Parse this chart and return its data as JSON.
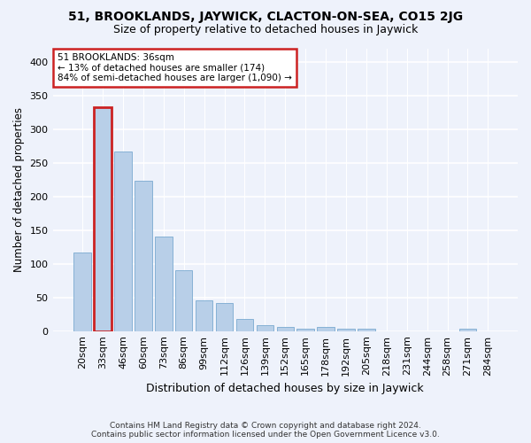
{
  "title1": "51, BROOKLANDS, JAYWICK, CLACTON-ON-SEA, CO15 2JG",
  "title2": "Size of property relative to detached houses in Jaywick",
  "xlabel": "Distribution of detached houses by size in Jaywick",
  "ylabel": "Number of detached properties",
  "categories": [
    "20sqm",
    "33sqm",
    "46sqm",
    "60sqm",
    "73sqm",
    "86sqm",
    "99sqm",
    "112sqm",
    "126sqm",
    "139sqm",
    "152sqm",
    "165sqm",
    "178sqm",
    "192sqm",
    "205sqm",
    "218sqm",
    "231sqm",
    "244sqm",
    "258sqm",
    "271sqm",
    "284sqm"
  ],
  "values": [
    117,
    333,
    267,
    224,
    141,
    90,
    46,
    42,
    18,
    9,
    6,
    4,
    6,
    4,
    4,
    0,
    0,
    0,
    0,
    4,
    0
  ],
  "bar_color": "#b8cfe8",
  "bar_edge_color": "#7aaad0",
  "highlight_bar_index": 1,
  "highlight_bar_color": "#b8cfe8",
  "highlight_edge_color": "#cc2222",
  "annotation_text": "51 BROOKLANDS: 36sqm\n← 13% of detached houses are smaller (174)\n84% of semi-detached houses are larger (1,090) →",
  "annotation_box_color": "#ffffff",
  "annotation_box_edge_color": "#cc2222",
  "footnote1": "Contains HM Land Registry data © Crown copyright and database right 2024.",
  "footnote2": "Contains public sector information licensed under the Open Government Licence v3.0.",
  "bg_color": "#eef2fb",
  "ylim": [
    0,
    420
  ],
  "yticks": [
    0,
    50,
    100,
    150,
    200,
    250,
    300,
    350,
    400
  ],
  "title_fontsize": 10,
  "subtitle_fontsize": 9,
  "ylabel_fontsize": 8.5,
  "xlabel_fontsize": 9,
  "tick_fontsize": 8,
  "annot_fontsize": 7.5,
  "footnote_fontsize": 6.5
}
